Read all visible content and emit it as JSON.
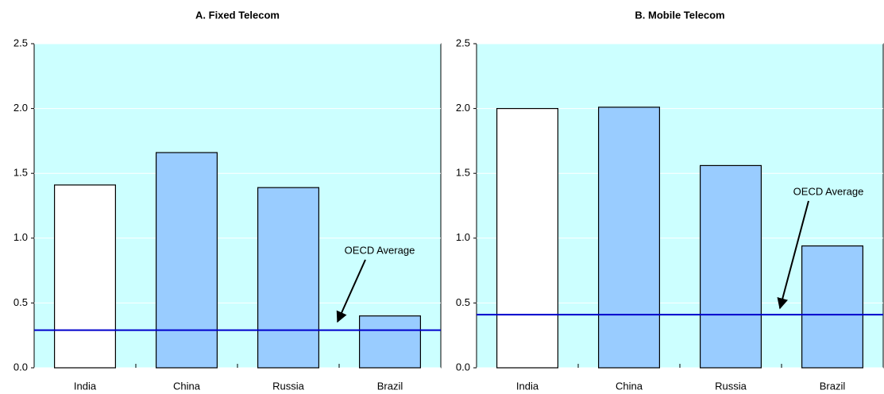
{
  "chart_data": [
    {
      "type": "bar",
      "title": "A. Fixed Telecom",
      "categories": [
        "India",
        "China",
        "Russia",
        "Brazil"
      ],
      "values": [
        1.41,
        1.66,
        1.39,
        0.4
      ],
      "colors": [
        "#ffffff",
        "#99ccff",
        "#99ccff",
        "#99ccff"
      ],
      "ylim": [
        0,
        2.5
      ],
      "yticks": [
        {
          "value": 0,
          "label": "0.0"
        },
        0.5,
        {
          "value": 1,
          "label": "1.0"
        },
        1.5,
        {
          "value": 2,
          "label": "2.0"
        },
        2.5
      ],
      "grid": true,
      "reference_line": {
        "label": "OECD Average",
        "value": 0.29,
        "color": "#0000cc"
      }
    },
    {
      "type": "bar",
      "title": "B. Mobile Telecom",
      "categories": [
        "India",
        "China",
        "Russia",
        "Brazil"
      ],
      "values": [
        2.0,
        2.01,
        1.56,
        0.94
      ],
      "colors": [
        "#ffffff",
        "#99ccff",
        "#99ccff",
        "#99ccff"
      ],
      "ylim": [
        0,
        2.5
      ],
      "yticks": [
        {
          "value": 0,
          "label": "0.0"
        },
        0.5,
        {
          "value": 1,
          "label": "1.0"
        },
        1.5,
        {
          "value": 2,
          "label": "2.0"
        },
        2.5
      ],
      "grid": true,
      "reference_line": {
        "label": "OECD Average",
        "value": 0.41,
        "color": "#0000cc"
      }
    }
  ]
}
